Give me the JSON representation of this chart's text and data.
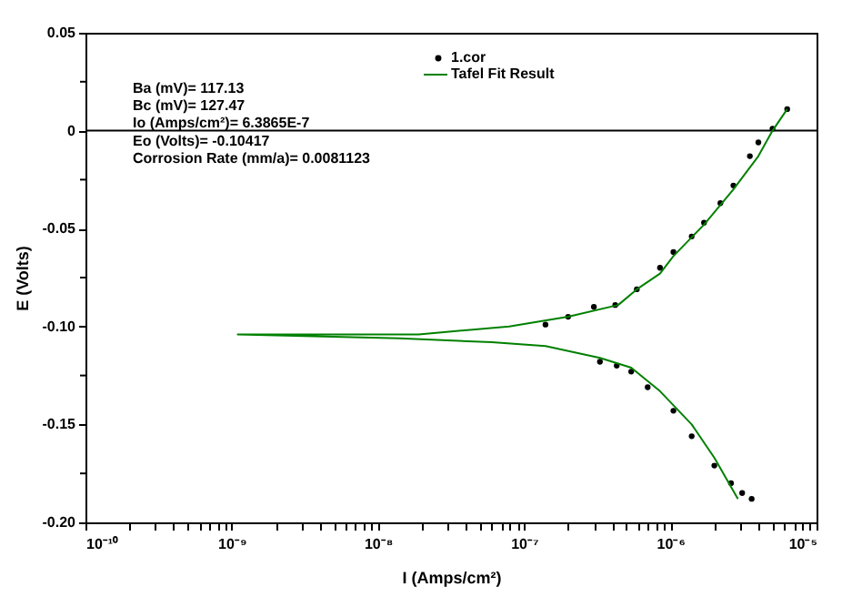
{
  "chart_data": {
    "type": "line",
    "xlabel": "I (Amps/cm²)",
    "ylabel": "E (Volts)",
    "log": "x",
    "grid": false,
    "legend": "top",
    "xlim": [
      1e-10,
      1e-05
    ],
    "ylim": [
      -0.2,
      0.05
    ],
    "xticks": [
      {
        "value": 1e-10,
        "label": "10⁻¹⁰"
      },
      {
        "value": 2e-10,
        "label": null
      },
      {
        "value": 3e-10,
        "label": null
      },
      {
        "value": 4e-10,
        "label": null
      },
      {
        "value": 5e-10,
        "label": null
      },
      {
        "value": 6e-10,
        "label": null
      },
      {
        "value": 7e-10,
        "label": null
      },
      {
        "value": 8e-10,
        "label": null
      },
      {
        "value": 9e-10,
        "label": null
      },
      {
        "value": 1e-09,
        "label": "10⁻⁹"
      },
      {
        "value": 2e-09,
        "label": null
      },
      {
        "value": 3e-09,
        "label": null
      },
      {
        "value": 4e-09,
        "label": null
      },
      {
        "value": 5e-09,
        "label": null
      },
      {
        "value": 6e-09,
        "label": null
      },
      {
        "value": 7e-09,
        "label": null
      },
      {
        "value": 8e-09,
        "label": null
      },
      {
        "value": 9e-09,
        "label": null
      },
      {
        "value": 1e-08,
        "label": "10⁻⁸"
      },
      {
        "value": 2e-08,
        "label": null
      },
      {
        "value": 3e-08,
        "label": null
      },
      {
        "value": 4e-08,
        "label": null
      },
      {
        "value": 5e-08,
        "label": null
      },
      {
        "value": 6e-08,
        "label": null
      },
      {
        "value": 7e-08,
        "label": null
      },
      {
        "value": 8e-08,
        "label": null
      },
      {
        "value": 9e-08,
        "label": null
      },
      {
        "value": 1e-07,
        "label": "10⁻⁷"
      },
      {
        "value": 2e-07,
        "label": null
      },
      {
        "value": 3e-07,
        "label": null
      },
      {
        "value": 4e-07,
        "label": null
      },
      {
        "value": 5e-07,
        "label": null
      },
      {
        "value": 6e-07,
        "label": null
      },
      {
        "value": 7e-07,
        "label": null
      },
      {
        "value": 8e-07,
        "label": null
      },
      {
        "value": 9e-07,
        "label": null
      },
      {
        "value": 1e-06,
        "label": "10⁻⁶"
      },
      {
        "value": 2e-06,
        "label": null
      },
      {
        "value": 3e-06,
        "label": null
      },
      {
        "value": 4e-06,
        "label": null
      },
      {
        "value": 5e-06,
        "label": null
      },
      {
        "value": 6e-06,
        "label": null
      },
      {
        "value": 7e-06,
        "label": null
      },
      {
        "value": 8e-06,
        "label": null
      },
      {
        "value": 9e-06,
        "label": null
      },
      {
        "value": 1e-05,
        "label": "10⁻⁵"
      }
    ],
    "yticks": [
      {
        "value": 0.05,
        "label": "0.05"
      },
      {
        "value": 0.025,
        "label": null
      },
      {
        "value": 0,
        "label": "0"
      },
      {
        "value": -0.025,
        "label": null
      },
      {
        "value": -0.05,
        "label": "-0.05"
      },
      {
        "value": -0.075,
        "label": null
      },
      {
        "value": -0.1,
        "label": "-0.10"
      },
      {
        "value": -0.125,
        "label": null
      },
      {
        "value": -0.15,
        "label": "-0.15"
      },
      {
        "value": -0.175,
        "label": null
      },
      {
        "value": -0.2,
        "label": "-0.20"
      }
    ],
    "ref_lines": [
      {
        "axis": "y",
        "value": 0,
        "color": "#000000"
      }
    ],
    "annotations": [
      "Ba (mV)= 117.13",
      "Bc (mV)= 127.47",
      "Io (Amps/cm²)= 6.3865E-7",
      "Eo (Volts)= -0.10417",
      "Corrosion Rate (mm/a)= 0.0081123"
    ],
    "series": [
      {
        "name": "1.cor",
        "type": "scatter",
        "marker": "circle",
        "color": "#000000",
        "x": [
          1.4e-07,
          2e-07,
          3e-07,
          4.2e-07,
          5.9e-07,
          8.5e-07,
          1.05e-06,
          1.4e-06,
          1.7e-06,
          2.2e-06,
          2.7e-06,
          3.5e-06,
          4e-06,
          5e-06,
          6.3e-06,
          3.3e-07,
          4.3e-07,
          5.4e-07,
          7e-07,
          1.05e-06,
          1.4e-06,
          2e-06,
          2.6e-06,
          3.1e-06,
          3.6e-06
        ],
        "values": [
          -0.099,
          -0.095,
          -0.09,
          -0.089,
          -0.081,
          -0.07,
          -0.062,
          -0.054,
          -0.047,
          -0.037,
          -0.028,
          -0.013,
          -0.006,
          0.001,
          0.011,
          -0.118,
          -0.12,
          -0.123,
          -0.131,
          -0.143,
          -0.156,
          -0.171,
          -0.18,
          -0.185,
          -0.188
        ]
      },
      {
        "name": "Tafel Fit Result",
        "color": "#008000",
        "line_style": "solid",
        "x": [
          2.9e-06,
          2e-06,
          1.4e-06,
          8.5e-07,
          5.4e-07,
          3.3e-07,
          1.4e-07,
          6e-08,
          1.4e-08,
          1.1e-09,
          1.9e-08,
          7.9e-08,
          2e-07,
          4.4e-07,
          5.9e-07,
          8.5e-07,
          1.05e-06,
          1.7e-06,
          2.7e-06,
          4e-06,
          5e-06,
          6.3e-06
        ],
        "values": [
          -0.188,
          -0.167,
          -0.15,
          -0.133,
          -0.121,
          -0.116,
          -0.11,
          -0.108,
          -0.106,
          -0.104,
          -0.104,
          -0.1,
          -0.095,
          -0.089,
          -0.081,
          -0.073,
          -0.064,
          -0.048,
          -0.03,
          -0.013,
          0,
          0.011
        ]
      }
    ]
  }
}
